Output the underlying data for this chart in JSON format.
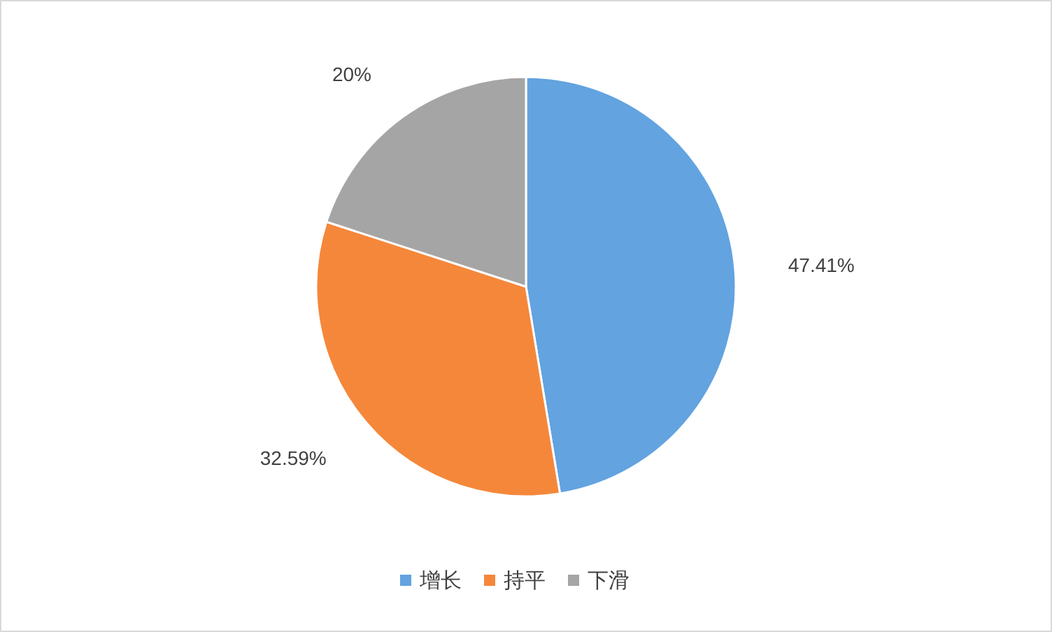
{
  "chart_data": {
    "type": "pie",
    "categories": [
      "增长",
      "持平",
      "下滑"
    ],
    "values": [
      47.41,
      32.59,
      20
    ],
    "colors": [
      "#62a3e0",
      "#f5873a",
      "#a5a5a5"
    ],
    "value_labels": [
      "47.41%",
      "32.59%",
      "20%"
    ],
    "legend": "bottom"
  }
}
